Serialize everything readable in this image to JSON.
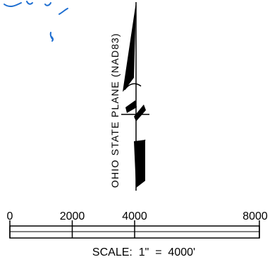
{
  "north_arrow": {
    "label": "OHIO STATE PLANE (NAD83)"
  },
  "scale_bar": {
    "tick_labels": [
      "0",
      "2000",
      "4000",
      "8000"
    ],
    "tick_values": [
      0,
      2000,
      4000,
      8000
    ],
    "max_value": 8000,
    "scale_text": "SCALE:  1\"  =  4000'"
  },
  "colors": {
    "ink": "#000000",
    "water": "#1f6fd1",
    "background": "#ffffff"
  }
}
